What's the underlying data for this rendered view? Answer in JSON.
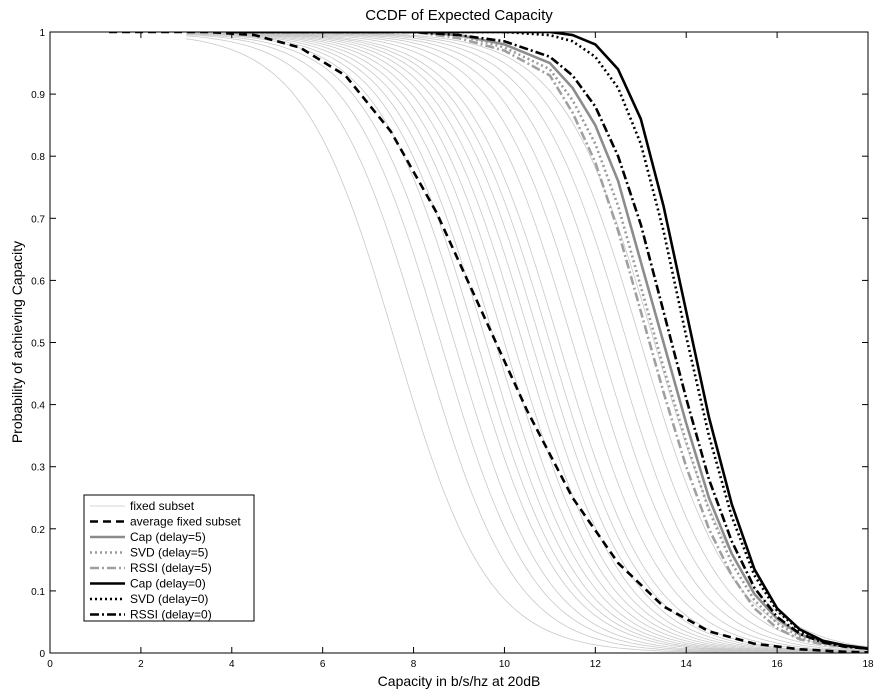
{
  "chart_data": {
    "type": "line",
    "title": "CCDF of Expected Capacity",
    "xlabel": "Capacity in b/s/hz at 20dB",
    "ylabel": "Probability of achieving Capacity",
    "xlim": [
      0,
      18
    ],
    "ylim": [
      0,
      1
    ],
    "xticks": [
      0,
      2,
      4,
      6,
      8,
      10,
      12,
      14,
      16,
      18
    ],
    "yticks": [
      0,
      0.1,
      0.2,
      0.3,
      0.4,
      0.5,
      0.6,
      0.7,
      0.8,
      0.9,
      1
    ],
    "grid": false,
    "legend_position": "bottom-left",
    "fixed_subset_medians": [
      7.6,
      8.2,
      8.6,
      8.9,
      9.2,
      9.4,
      9.6,
      9.8,
      10.0,
      10.2,
      10.4,
      10.6,
      10.8,
      11.0,
      11.2,
      11.5,
      11.8,
      12.1,
      12.4,
      12.7,
      13.0,
      13.3
    ],
    "series": [
      {
        "name": "fixed subset",
        "style": "solid-thin",
        "color": "#c8c8c8",
        "x": [
          4.0,
          6.0,
          7.0,
          8.0,
          9.0,
          10.0,
          11.0,
          12.0,
          13.0,
          14.0,
          15.0
        ],
        "y": [
          1.0,
          0.95,
          0.85,
          0.67,
          0.45,
          0.27,
          0.13,
          0.05,
          0.02,
          0.01,
          0.0
        ]
      },
      {
        "name": "average fixed subset",
        "style": "dashed-thick",
        "color": "#000000",
        "x": [
          1.3,
          3.5,
          4.5,
          5.5,
          6.5,
          7.5,
          8.5,
          9.5,
          10.5,
          11.5,
          12.5,
          13.5,
          14.5,
          15.5,
          16.5,
          17.5,
          18.0
        ],
        "y": [
          1.0,
          1.0,
          0.995,
          0.975,
          0.93,
          0.84,
          0.71,
          0.55,
          0.39,
          0.25,
          0.145,
          0.075,
          0.035,
          0.015,
          0.006,
          0.002,
          0.001
        ]
      },
      {
        "name": "Cap (delay=5)",
        "style": "solid-thick",
        "color": "#8c8c8c",
        "x": [
          4.0,
          8.0,
          9.0,
          10.0,
          11.0,
          11.5,
          12.0,
          12.5,
          13.0,
          13.5,
          14.0,
          14.5,
          15.0,
          15.5,
          16.0,
          16.5,
          17.0,
          17.5,
          18.0
        ],
        "y": [
          1.0,
          1.0,
          0.995,
          0.98,
          0.95,
          0.91,
          0.85,
          0.76,
          0.63,
          0.5,
          0.37,
          0.25,
          0.16,
          0.095,
          0.055,
          0.03,
          0.018,
          0.012,
          0.008
        ]
      },
      {
        "name": "SVD (delay=5)",
        "style": "dotted-thick",
        "color": "#9a9a9a",
        "x": [
          4.0,
          8.0,
          9.0,
          10.0,
          11.0,
          11.5,
          12.0,
          12.5,
          13.0,
          13.5,
          14.0,
          14.5,
          15.0,
          15.5,
          16.0,
          16.5,
          17.0,
          17.5,
          18.0
        ],
        "y": [
          1.0,
          1.0,
          0.995,
          0.975,
          0.94,
          0.89,
          0.82,
          0.72,
          0.59,
          0.46,
          0.34,
          0.23,
          0.145,
          0.085,
          0.048,
          0.026,
          0.016,
          0.011,
          0.008
        ]
      },
      {
        "name": "RSSI (delay=5)",
        "style": "dashdot-thick",
        "color": "#a0a0a0",
        "x": [
          4.0,
          8.0,
          9.0,
          10.0,
          11.0,
          11.5,
          12.0,
          12.5,
          13.0,
          13.5,
          14.0,
          14.5,
          15.0,
          15.5,
          16.0,
          16.5,
          17.0,
          17.5,
          18.0
        ],
        "y": [
          1.0,
          1.0,
          0.99,
          0.97,
          0.93,
          0.87,
          0.79,
          0.68,
          0.55,
          0.42,
          0.3,
          0.2,
          0.125,
          0.072,
          0.04,
          0.022,
          0.014,
          0.01,
          0.008
        ]
      },
      {
        "name": "Cap (delay=0)",
        "style": "solid-thick",
        "color": "#000000",
        "x": [
          4.0,
          10.0,
          11.0,
          11.5,
          12.0,
          12.5,
          13.0,
          13.5,
          14.0,
          14.5,
          15.0,
          15.5,
          16.0,
          16.5,
          17.0,
          17.5,
          18.0
        ],
        "y": [
          1.0,
          1.0,
          1.0,
          0.995,
          0.98,
          0.94,
          0.86,
          0.72,
          0.55,
          0.38,
          0.24,
          0.135,
          0.072,
          0.038,
          0.02,
          0.012,
          0.007
        ]
      },
      {
        "name": "SVD (delay=0)",
        "style": "dotted-thick",
        "color": "#000000",
        "x": [
          4.0,
          10.0,
          11.0,
          11.5,
          12.0,
          12.5,
          13.0,
          13.5,
          14.0,
          14.5,
          15.0,
          15.5,
          16.0,
          16.5,
          17.0,
          17.5,
          18.0
        ],
        "y": [
          1.0,
          1.0,
          0.995,
          0.985,
          0.96,
          0.91,
          0.82,
          0.68,
          0.51,
          0.35,
          0.22,
          0.125,
          0.068,
          0.036,
          0.019,
          0.011,
          0.007
        ]
      },
      {
        "name": "RSSI (delay=0)",
        "style": "dashdot-thick",
        "color": "#000000",
        "x": [
          4.0,
          8.0,
          9.0,
          10.0,
          11.0,
          11.5,
          12.0,
          12.5,
          13.0,
          13.5,
          14.0,
          14.5,
          15.0,
          15.5,
          16.0,
          16.5,
          17.0,
          17.5,
          18.0
        ],
        "y": [
          1.0,
          1.0,
          0.995,
          0.985,
          0.96,
          0.93,
          0.88,
          0.8,
          0.69,
          0.55,
          0.41,
          0.28,
          0.18,
          0.105,
          0.058,
          0.031,
          0.017,
          0.01,
          0.007
        ]
      }
    ]
  }
}
